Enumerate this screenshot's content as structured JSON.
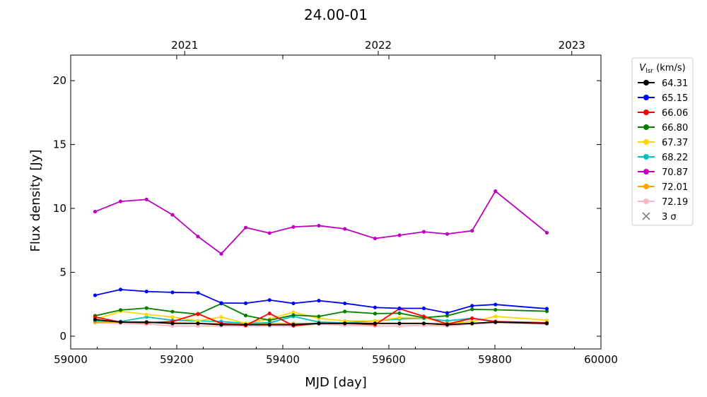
{
  "chart_data": {
    "type": "line",
    "title": "24.00-01",
    "xlabel": "MJD [day]",
    "ylabel": "Flux density [Jy]",
    "xlim": [
      59000,
      60000
    ],
    "ylim": [
      -1,
      22
    ],
    "xticks": [
      59000,
      59200,
      59400,
      59600,
      59800,
      60000
    ],
    "yticks": [
      0,
      5,
      10,
      15,
      20
    ],
    "top_axis": {
      "labels": [
        "2021",
        "2022",
        "2023"
      ],
      "mjd": [
        59215,
        59580,
        59945
      ]
    },
    "legend": {
      "title": "V_lsr (km/s)",
      "title_main": "V",
      "title_sub": "lsr",
      "title_unit": " (km/s)",
      "position": "outside-right",
      "sigma_label": "3 σ"
    },
    "x": [
      59046,
      59094,
      59143,
      59192,
      59240,
      59284,
      59330,
      59375,
      59420,
      59468,
      59517,
      59574,
      59620,
      59666,
      59710,
      59757,
      59801,
      59898
    ],
    "series": [
      {
        "name": "64.31",
        "color": "#000000",
        "values": [
          1.3,
          1.1,
          1.1,
          1.0,
          1.0,
          0.9,
          0.9,
          0.9,
          0.9,
          1.0,
          1.0,
          1.0,
          1.0,
          1.0,
          0.9,
          1.0,
          1.1,
          1.0
        ]
      },
      {
        "name": "65.15",
        "color": "#0000ff",
        "values": [
          3.2,
          3.65,
          3.5,
          3.43,
          3.4,
          2.6,
          2.58,
          2.83,
          2.57,
          2.78,
          2.57,
          2.25,
          2.18,
          2.18,
          1.82,
          2.38,
          2.48,
          2.15
        ]
      },
      {
        "name": "66.06",
        "color": "#ff0000",
        "values": [
          1.5,
          1.1,
          1.05,
          1.15,
          1.75,
          1.0,
          0.85,
          1.78,
          0.82,
          1.0,
          1.0,
          0.9,
          2.15,
          1.55,
          0.95,
          1.4,
          1.15,
          1.05
        ]
      },
      {
        "name": "66.80",
        "color": "#008000",
        "values": [
          1.6,
          2.05,
          2.2,
          1.92,
          1.72,
          2.55,
          1.62,
          1.25,
          1.65,
          1.55,
          1.93,
          1.77,
          1.8,
          1.45,
          1.6,
          2.1,
          2.07,
          1.95
        ]
      },
      {
        "name": "67.37",
        "color": "#ffd700",
        "values": [
          1.3,
          1.95,
          1.7,
          1.5,
          1.2,
          1.5,
          1.0,
          1.35,
          1.88,
          1.4,
          1.2,
          1.2,
          1.45,
          1.45,
          1.0,
          1.15,
          1.55,
          1.25
        ]
      },
      {
        "name": "68.22",
        "color": "#00bfbf",
        "values": [
          1.2,
          1.15,
          1.5,
          1.25,
          1.2,
          1.15,
          1.0,
          1.05,
          1.55,
          1.1,
          1.05,
          1.2,
          1.35,
          1.4,
          1.2,
          1.4,
          1.1,
          1.05
        ]
      },
      {
        "name": "70.87",
        "color": "#bf00bf",
        "values": [
          9.75,
          10.55,
          10.7,
          9.5,
          7.8,
          6.45,
          8.5,
          8.07,
          8.55,
          8.65,
          8.4,
          7.65,
          7.9,
          8.17,
          8.0,
          8.25,
          11.35,
          8.1
        ]
      },
      {
        "name": "72.01",
        "color": "#ffa500",
        "values": [
          1.1,
          1.1,
          1.1,
          1.05,
          1.0,
          1.0,
          0.95,
          1.0,
          1.0,
          1.0,
          1.0,
          1.0,
          1.0,
          1.0,
          1.0,
          1.0,
          1.1,
          1.0
        ]
      },
      {
        "name": "72.19",
        "color": "#ffb6c1",
        "values": [
          1.05,
          1.0,
          0.95,
          0.8,
          0.8,
          0.8,
          0.8,
          0.8,
          0.8,
          0.95,
          0.85,
          0.8,
          0.8,
          0.85,
          0.8,
          0.95,
          1.05,
          0.95
        ]
      }
    ]
  }
}
